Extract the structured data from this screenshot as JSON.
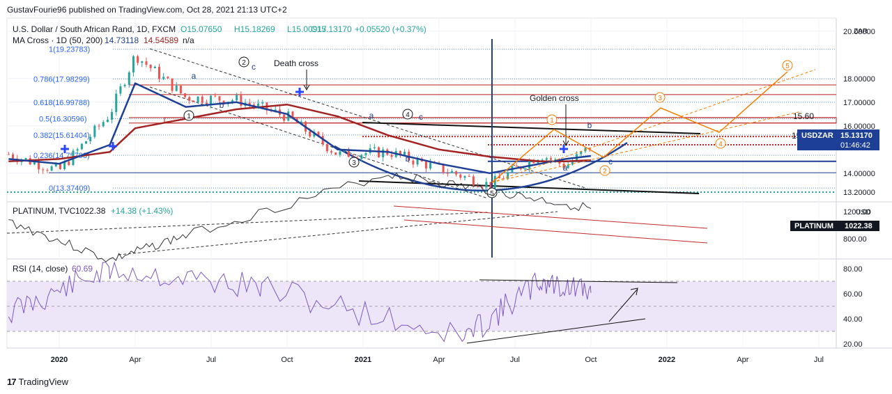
{
  "publisher_line": "GustavFourie96 published on TradingView.com, Oct 28, 2021 21:13 UTC+2",
  "brand": {
    "logo": "17",
    "label": "TradingView"
  },
  "main": {
    "symbol": "U.S. Dollar / South African Rand, 1D, FXCM",
    "open": "O15.07650",
    "high": "H15.18269",
    "low": "L15.00917",
    "close": "C15.13170",
    "change": "+0.05520 (+0.37%)",
    "ma_label": "MA Cross · 1D (50, 200)",
    "ma1": "14.73118",
    "ma2": "14.54589",
    "ma3": "n/a",
    "currency": "ZAR",
    "price_tag": {
      "symbol": "USDZAR",
      "price": "15.13170",
      "countdown": "01:46:42"
    },
    "axis_labels": [
      "20.00000",
      "18.00000",
      "17.00000",
      "16.00000",
      "14.00000",
      "13.20000"
    ],
    "fib_labels": [
      "1(19.23783)",
      "0.786(17.98299)",
      "0.618(16.99788)",
      "0.5(16.30596)",
      "0.382(15.61404)",
      "0.236(14.75798)",
      "0(13.37409)"
    ],
    "annotations": {
      "death_cross": "Death cross",
      "golden_cross": "Golden cross",
      "level": "15.60",
      "edge": "15",
      "wave_marks": [
        "1",
        "2",
        "3",
        "4",
        "5"
      ],
      "abc": [
        "a",
        "b",
        "c"
      ],
      "projection_marks": [
        "1",
        "2",
        "3",
        "4",
        "5"
      ]
    }
  },
  "platinum": {
    "label": "PLATINUM, TVC",
    "value": "1022.38",
    "change": "+14.38 (+1.43%)",
    "currency": "USD",
    "tag_symbol": "PLATINUM",
    "tag_value": "1022.38",
    "axis_labels": [
      "1200.00",
      "800.00"
    ]
  },
  "rsi": {
    "label": "RSI (14, close)",
    "value": "60.69",
    "axis_labels": [
      "80.00",
      "60.00",
      "40.00",
      "20.00"
    ]
  },
  "time_axis": [
    "2020",
    "Apr",
    "Jul",
    "Oct",
    "2021",
    "Apr",
    "Jul",
    "Oct",
    "2022",
    "Apr",
    "Jul"
  ],
  "colors": {
    "candle_up": "#26a69a",
    "candle_down": "#ef5350",
    "ma_fast": "#1d3f96",
    "ma_slow": "#a32222",
    "rsi_band": "#ede6f8",
    "rsi_line": "#7e57c2",
    "projection": "#f57c00",
    "price_tag": "#1d3f96"
  },
  "chart_data": [
    {
      "type": "line",
      "panel": "USDZAR daily",
      "x": [
        "2019-11",
        "2020-01",
        "2020-03",
        "2020-04",
        "2020-06",
        "2020-08",
        "2020-10",
        "2020-12",
        "2021-02",
        "2021-04",
        "2021-06",
        "2021-08",
        "2021-09",
        "2021-10"
      ],
      "series": [
        {
          "name": "USDZAR",
          "values": [
            14.8,
            14.1,
            16.5,
            19.0,
            17.2,
            17.1,
            16.4,
            14.8,
            14.9,
            14.2,
            13.5,
            14.8,
            14.3,
            15.13
          ]
        },
        {
          "name": "MA 50",
          "values": [
            14.6,
            14.4,
            15.2,
            17.8,
            16.8,
            17.0,
            16.5,
            15.0,
            14.9,
            14.4,
            14.0,
            14.4,
            14.6,
            14.73
          ]
        },
        {
          "name": "MA 200",
          "values": [
            14.5,
            14.6,
            14.9,
            15.9,
            16.3,
            16.7,
            16.9,
            16.4,
            15.6,
            15.0,
            14.7,
            14.5,
            14.5,
            14.55
          ]
        }
      ],
      "ylim": [
        13.2,
        20.0
      ]
    },
    {
      "type": "line",
      "panel": "PLATINUM, TVC",
      "x": [
        "2019-11",
        "2020-03",
        "2020-06",
        "2021-02",
        "2021-06",
        "2021-10"
      ],
      "values": [
        930,
        650,
        830,
        1270,
        1150,
        1022.38
      ]
    },
    {
      "type": "line",
      "panel": "RSI (14, close)",
      "x": [
        "2019-11",
        "2020-03",
        "2020-09",
        "2021-05",
        "2021-08",
        "2021-10"
      ],
      "values": [
        45,
        80,
        65,
        25,
        70,
        60.69
      ],
      "ylim": [
        20,
        80
      ]
    }
  ]
}
